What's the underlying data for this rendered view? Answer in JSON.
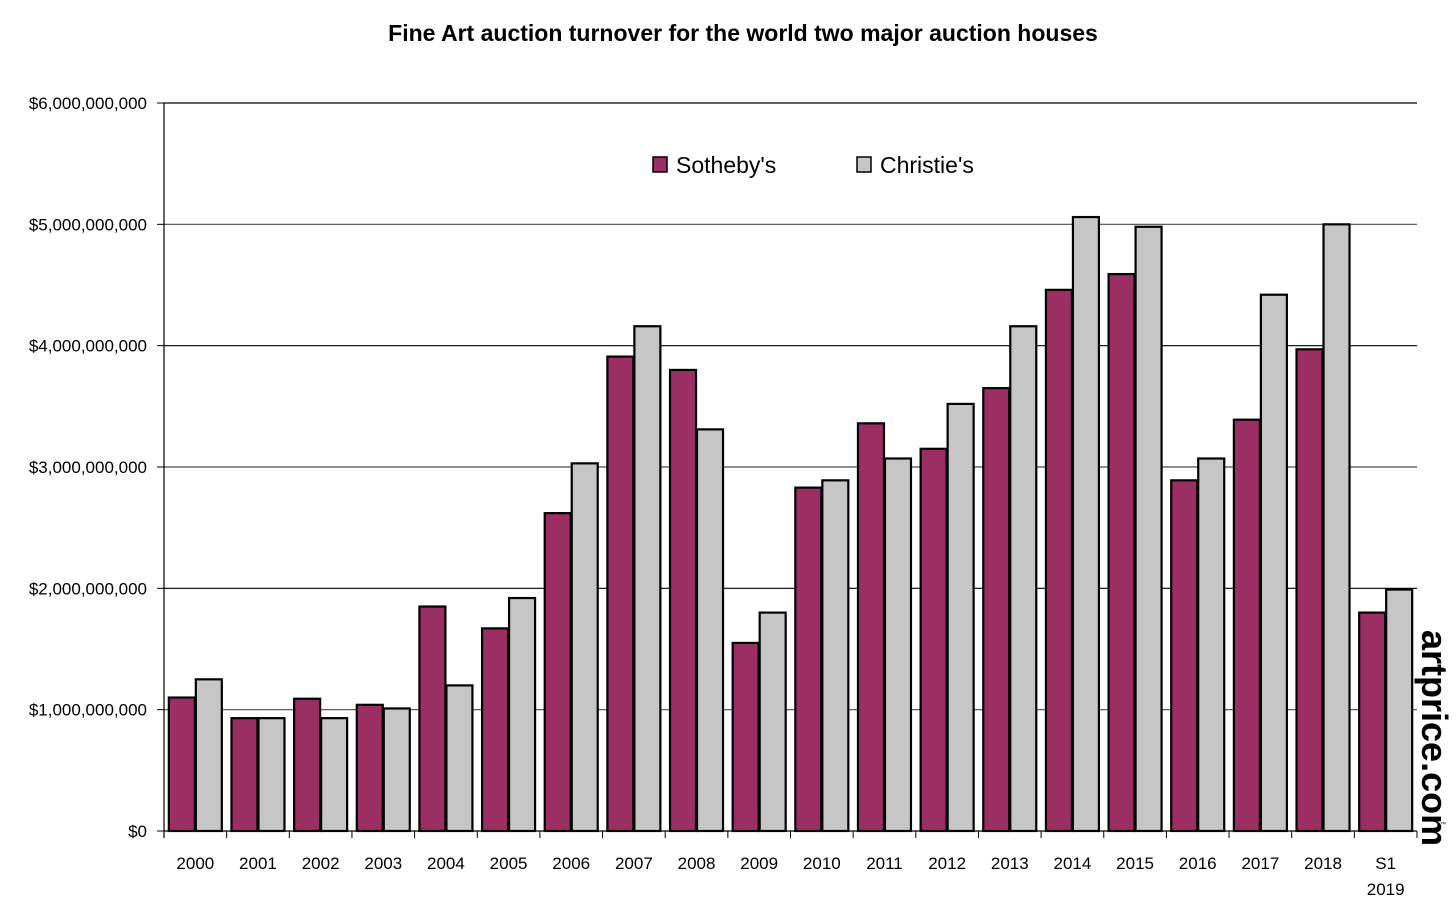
{
  "chart_data": {
    "type": "bar",
    "title": "Fine Art auction turnover for the world two major auction houses",
    "xlabel": "",
    "ylabel": "",
    "ylim": [
      0,
      6000000000
    ],
    "yticks": [
      0,
      1000000000,
      2000000000,
      3000000000,
      4000000000,
      5000000000,
      6000000000
    ],
    "ytick_labels": [
      "$0",
      "$1,000,000,000",
      "$2,000,000,000",
      "$3,000,000,000",
      "$4,000,000,000",
      "$5,000,000,000",
      "$6,000,000,000"
    ],
    "grid": true,
    "legend_position": "top-center",
    "categories": [
      "2000",
      "2001",
      "2002",
      "2003",
      "2004",
      "2005",
      "2006",
      "2007",
      "2008",
      "2009",
      "2010",
      "2011",
      "2012",
      "2013",
      "2014",
      "2015",
      "2016",
      "2017",
      "2018",
      "S1 2019"
    ],
    "category_lines": [
      [
        "2000"
      ],
      [
        "2001"
      ],
      [
        "2002"
      ],
      [
        "2003"
      ],
      [
        "2004"
      ],
      [
        "2005"
      ],
      [
        "2006"
      ],
      [
        "2007"
      ],
      [
        "2008"
      ],
      [
        "2009"
      ],
      [
        "2010"
      ],
      [
        "2011"
      ],
      [
        "2012"
      ],
      [
        "2013"
      ],
      [
        "2014"
      ],
      [
        "2015"
      ],
      [
        "2016"
      ],
      [
        "2017"
      ],
      [
        "2018"
      ],
      [
        "S1",
        "2019"
      ]
    ],
    "series": [
      {
        "name": "Sotheby's",
        "color": "#9b2f63",
        "values": [
          1100000000,
          930000000,
          1090000000,
          1040000000,
          1850000000,
          1670000000,
          2620000000,
          3910000000,
          3800000000,
          1550000000,
          2830000000,
          3360000000,
          3150000000,
          3650000000,
          4460000000,
          4590000000,
          2890000000,
          3390000000,
          3970000000,
          1800000000
        ]
      },
      {
        "name": "Christie's",
        "color": "#c6c6c6",
        "values": [
          1250000000,
          930000000,
          930000000,
          1010000000,
          1200000000,
          1920000000,
          3030000000,
          4160000000,
          3310000000,
          1800000000,
          2890000000,
          3070000000,
          3520000000,
          4160000000,
          5060000000,
          4980000000,
          3070000000,
          4420000000,
          5000000000,
          1990000000
        ]
      }
    ]
  },
  "watermark": {
    "text": "artprice.com",
    "trademark": "™"
  }
}
